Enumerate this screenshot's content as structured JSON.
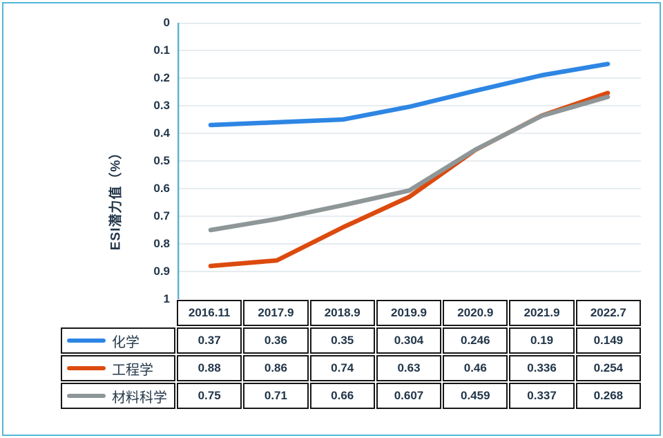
{
  "chart_data": {
    "type": "line",
    "title": "",
    "ylabel": "ESI潜力值（%）",
    "xlabel": "",
    "categories": [
      "2016.11",
      "2017.9",
      "2018.9",
      "2019.9",
      "2020.9",
      "2021.9",
      "2022.7"
    ],
    "series": [
      {
        "name": "化学",
        "color": "#2e86e4",
        "values": [
          0.37,
          0.36,
          0.35,
          0.304,
          0.246,
          0.19,
          0.149
        ]
      },
      {
        "name": "工程学",
        "color": "#dc4a0e",
        "values": [
          0.88,
          0.86,
          0.74,
          0.63,
          0.46,
          0.336,
          0.254
        ]
      },
      {
        "name": "材料科学",
        "color": "#8e9697",
        "values": [
          0.75,
          0.71,
          0.66,
          0.607,
          0.459,
          0.337,
          0.268
        ]
      }
    ],
    "y_axis": {
      "min": 0,
      "max": 1,
      "step": 0.1,
      "inverted": true,
      "tick_labels": [
        "0",
        "0.1",
        "0.2",
        "0.3",
        "0.4",
        "0.5",
        "0.6",
        "0.7",
        "0.8",
        "0.9",
        "1"
      ]
    },
    "grid": true,
    "legend_position": "table-left",
    "colors": {
      "grid_line": "#dde6ea",
      "axis_line": "#5aafd0",
      "outer_border": "#52b7d6",
      "table_border": "#161616",
      "text": "#22364a"
    }
  }
}
